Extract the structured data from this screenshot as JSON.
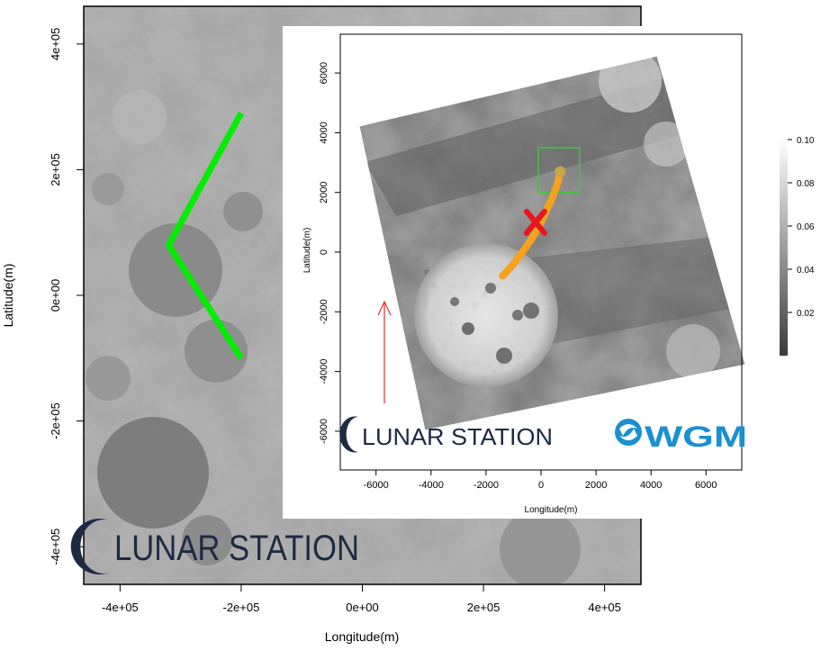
{
  "chart_data": [
    {
      "type": "heatmap",
      "xlabel": "Longitude(m)",
      "ylabel": "Latitude(m)",
      "xlim": [
        -460000,
        460000
      ],
      "ylim": [
        -460000,
        460000
      ],
      "x_ticks": [
        -400000,
        -200000,
        0,
        200000,
        400000
      ],
      "x_tick_labels": [
        "-4e+05",
        "-2e+05",
        "0e+00",
        "2e+05",
        "4e+05"
      ],
      "y_ticks": [
        -400000,
        -200000,
        0,
        200000,
        400000
      ],
      "y_tick_labels": [
        "-4e+05",
        "-2e+05",
        "0e+00",
        "2e+05",
        "4e+05"
      ],
      "zoom_path": {
        "color": "#00ee00",
        "points": [
          [
            -200000,
            290000
          ],
          [
            -320000,
            80000
          ],
          [
            -200000,
            -100000
          ]
        ]
      },
      "watermark": "LUNAR STATION"
    },
    {
      "type": "heatmap",
      "xlabel": "Longitude(m)",
      "ylabel": "Latitude(m)",
      "xlim": [
        -7300,
        7300
      ],
      "ylim": [
        -7300,
        7300
      ],
      "x_ticks": [
        -6000,
        -4000,
        -2000,
        0,
        2000,
        4000,
        6000
      ],
      "x_tick_labels": [
        "-6000",
        "-4000",
        "-2000",
        "0",
        "2000",
        "4000",
        "6000"
      ],
      "y_ticks": [
        -6000,
        -4000,
        -2000,
        0,
        2000,
        4000,
        6000
      ],
      "y_tick_labels": [
        "-6000",
        "-4000",
        "-2000",
        "0",
        "2000",
        "4000",
        "6000"
      ],
      "colorbar": {
        "ticks": [
          0.02,
          0.04,
          0.06,
          0.08,
          0.1
        ],
        "tick_labels": [
          "0.02",
          "0.04",
          "0.06",
          "0.08",
          "0.10"
        ],
        "range": [
          0,
          0.1
        ]
      },
      "track": {
        "color": "#f5a21e",
        "points": [
          [
            -1400,
            -800
          ],
          [
            -1000,
            -400
          ],
          [
            -600,
            100
          ],
          [
            -300,
            500
          ],
          [
            0,
            1000
          ],
          [
            200,
            1400
          ],
          [
            400,
            1800
          ],
          [
            600,
            2300
          ],
          [
            700,
            2700
          ]
        ]
      },
      "landing_site": {
        "x": -200,
        "y": 1000,
        "color": "#e8141e"
      },
      "highlight_box": {
        "x": [
          -100,
          1400
        ],
        "y": [
          2000,
          3500
        ],
        "color": "#3cc83c"
      },
      "north_arrow": {
        "color": "#e03030"
      },
      "watermark": "LUNAR STATION",
      "logo": "WGM"
    }
  ]
}
